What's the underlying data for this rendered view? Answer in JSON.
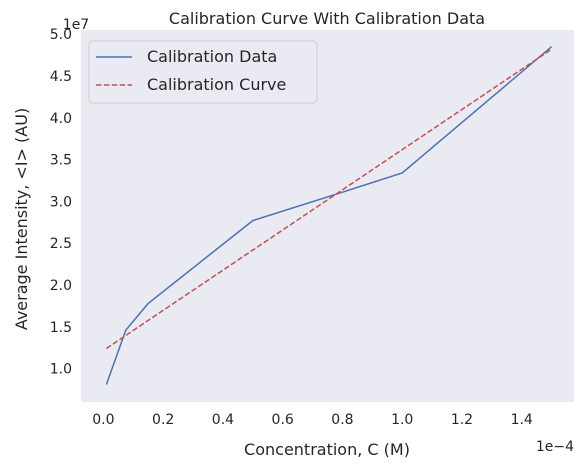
{
  "chart_data": {
    "type": "line",
    "title": "Calibration Curve With Calibration Data",
    "xlabel": "Concentration, C (M)",
    "ylabel": "Average Intensity, <I> (AU)",
    "x_scale_label": "1e−4",
    "y_scale_label": "1e7",
    "x_scale_factor": 0.0001,
    "y_scale_factor": 10000000,
    "xlim": [
      -0.075,
      1.575
    ],
    "ylim": [
      0.6,
      5.05
    ],
    "x_ticks": [
      0.0,
      0.2,
      0.4,
      0.6,
      0.8,
      1.0,
      1.2,
      1.4
    ],
    "x_tick_labels": [
      "0.0",
      "0.2",
      "0.4",
      "0.6",
      "0.8",
      "1.0",
      "1.2",
      "1.4"
    ],
    "y_ticks": [
      1.0,
      1.5,
      2.0,
      2.5,
      3.0,
      3.5,
      4.0,
      4.5,
      5.0
    ],
    "y_tick_labels": [
      "1.0",
      "1.5",
      "2.0",
      "2.5",
      "3.0",
      "3.5",
      "4.0",
      "4.5",
      "5.0"
    ],
    "grid": false,
    "legend_position": "top-left",
    "background_color": "#eaeaf2",
    "series": [
      {
        "name": "Calibration Data",
        "style": "solid",
        "color": "#4c72b0",
        "x": [
          0.01,
          0.075,
          0.15,
          0.5,
          0.8,
          1.0,
          1.5
        ],
        "y": [
          0.81,
          1.46,
          1.78,
          2.77,
          3.11,
          3.34,
          4.85
        ]
      },
      {
        "name": "Calibration Curve",
        "style": "dashed",
        "color": "#c44e52",
        "x": [
          0.01,
          1.5
        ],
        "y": [
          1.24,
          4.82
        ]
      }
    ]
  }
}
